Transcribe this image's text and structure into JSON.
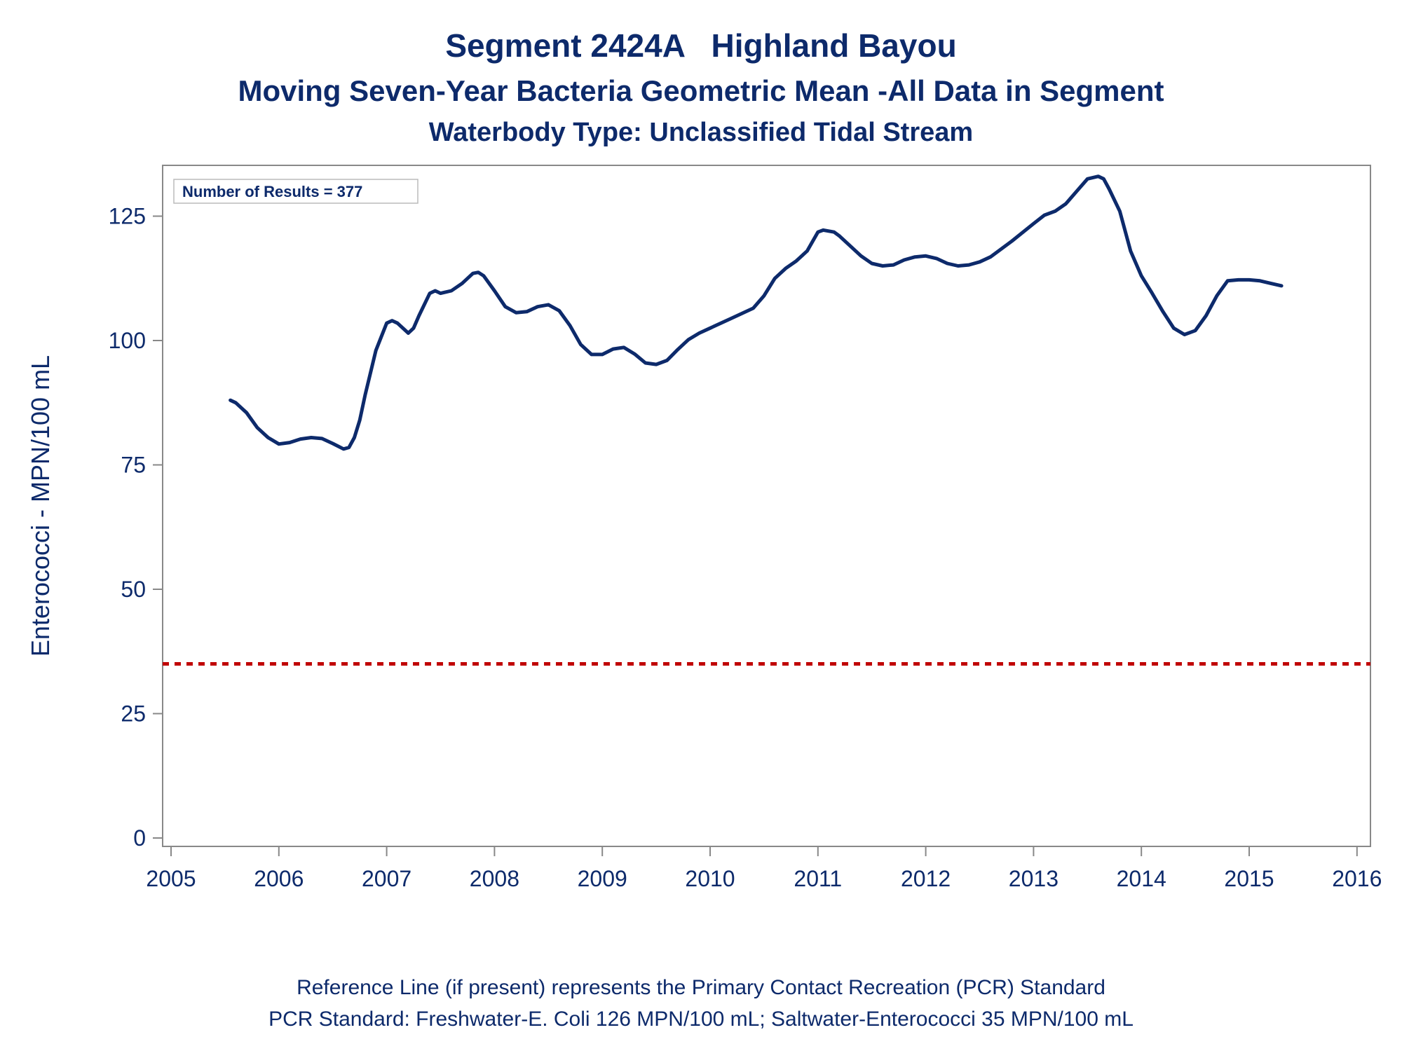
{
  "title": "Segment 2424A   Highland Bayou",
  "subtitle": "Moving Seven-Year Bacteria Geometric Mean -All Data in Segment",
  "subtitle2": "Waterbody Type: Unclassified Tidal Stream",
  "annotation": "Number of Results = 377",
  "footnote1": "Reference Line (if present) represents the Primary Contact Recreation (PCR) Standard",
  "footnote2": "PCR Standard: Freshwater-E. Coli 126 MPN/100 mL; Saltwater-Enterococci 35 MPN/100 mL",
  "colors": {
    "series": "#0d2a6b",
    "reference": "#c00000",
    "axis": "#888888",
    "text": "#0d2a6b"
  },
  "chart_data": {
    "type": "line",
    "ylabel": "Enterococci - MPN/100 mL",
    "xlabel": "",
    "xlim": [
      2005,
      2016
    ],
    "ylim": [
      0,
      135
    ],
    "xticks": [
      2005,
      2006,
      2007,
      2008,
      2009,
      2010,
      2011,
      2012,
      2013,
      2014,
      2015,
      2016
    ],
    "yticks": [
      0,
      25,
      50,
      75,
      100,
      125
    ],
    "grid": false,
    "reference_line": {
      "y": 35,
      "style": "dashed"
    },
    "series": [
      {
        "x": [
          2005.55,
          2005.6,
          2005.7,
          2005.8,
          2005.9,
          2006.0,
          2006.1,
          2006.2,
          2006.3,
          2006.4,
          2006.5,
          2006.6,
          2006.65,
          2006.7,
          2006.75,
          2006.8,
          2006.9,
          2007.0,
          2007.05,
          2007.1,
          2007.2,
          2007.25,
          2007.3,
          2007.4,
          2007.45,
          2007.5,
          2007.6,
          2007.7,
          2007.8,
          2007.85,
          2007.9,
          2008.0,
          2008.1,
          2008.2,
          2008.3,
          2008.4,
          2008.5,
          2008.6,
          2008.7,
          2008.8,
          2008.9,
          2009.0,
          2009.1,
          2009.2,
          2009.3,
          2009.4,
          2009.5,
          2009.6,
          2009.7,
          2009.8,
          2009.9,
          2010.0,
          2010.2,
          2010.4,
          2010.5,
          2010.6,
          2010.7,
          2010.8,
          2010.9,
          2011.0,
          2011.05,
          2011.15,
          2011.2,
          2011.3,
          2011.4,
          2011.5,
          2011.6,
          2011.7,
          2011.8,
          2011.9,
          2012.0,
          2012.1,
          2012.2,
          2012.3,
          2012.4,
          2012.5,
          2012.6,
          2012.8,
          2013.0,
          2013.1,
          2013.2,
          2013.3,
          2013.4,
          2013.5,
          2013.6,
          2013.65,
          2013.7,
          2013.8,
          2013.9,
          2014.0,
          2014.1,
          2014.2,
          2014.3,
          2014.4,
          2014.5,
          2014.6,
          2014.7,
          2014.8,
          2014.9,
          2015.0,
          2015.1,
          2015.2,
          2015.3
        ],
        "y": [
          88,
          87.5,
          85.5,
          82.5,
          80.5,
          79.2,
          79.5,
          80.2,
          80.5,
          80.3,
          79.3,
          78.2,
          78.5,
          80.5,
          84,
          89,
          98,
          103.5,
          104,
          103.5,
          101.5,
          102.5,
          105,
          109.5,
          110,
          109.5,
          110,
          111.5,
          113.5,
          113.7,
          113,
          110,
          106.8,
          105.6,
          105.8,
          106.8,
          107.2,
          106,
          103,
          99.2,
          97.2,
          97.2,
          98.3,
          98.6,
          97.3,
          95.5,
          95.2,
          96,
          98.2,
          100.2,
          101.5,
          102.5,
          104.5,
          106.5,
          109,
          112.5,
          114.5,
          116,
          118,
          121.8,
          122.2,
          121.8,
          121,
          119,
          117,
          115.5,
          115,
          115.2,
          116.2,
          116.8,
          117,
          116.5,
          115.5,
          115,
          115.2,
          115.8,
          116.8,
          120,
          123.5,
          125.2,
          126,
          127.5,
          130,
          132.5,
          133,
          132.5,
          130.5,
          126,
          118,
          113,
          109.5,
          105.8,
          102.5,
          101.2,
          102,
          105,
          109,
          112,
          112.2,
          112.2,
          112,
          111.5,
          111
        ]
      }
    ]
  }
}
